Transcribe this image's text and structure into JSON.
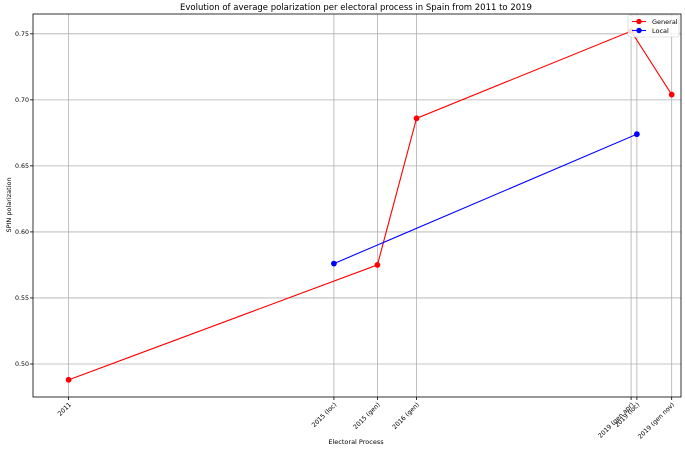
{
  "chart_data": {
    "type": "line",
    "title": "Evolution of average polarization per electoral process in Spain from 2011 to 2019",
    "xlabel": "Electoral Process",
    "ylabel": "SPIN polarization",
    "ylim": [
      0.475,
      0.765
    ],
    "yticks": [
      0.5,
      0.55,
      0.6,
      0.65,
      0.7,
      0.75
    ],
    "ytick_labels": [
      "0.50",
      "0.55",
      "0.60",
      "0.65",
      "0.70",
      "0.75"
    ],
    "xtick_labels": [
      "2011",
      "2015 (loc)",
      "2015 (gen)",
      "2016 (gen)",
      "2019 (gen apr)",
      "2019 (loc)",
      "2019 (gen nov)"
    ],
    "x_positions": [
      "2011-11-20",
      "2015-05-24",
      "2015-12-20",
      "2016-06-26",
      "2019-04-28",
      "2019-05-26",
      "2019-11-10"
    ],
    "grid": true,
    "legend_position": "top-right",
    "series": [
      {
        "name": "General",
        "color": "#ff0000",
        "x": [
          "2011-11-20",
          "2015-12-20",
          "2016-06-26",
          "2019-04-28",
          "2019-11-10"
        ],
        "values": [
          0.488,
          0.575,
          0.686,
          0.752,
          0.704
        ]
      },
      {
        "name": "Local",
        "color": "#0000ff",
        "x": [
          "2015-05-24",
          "2019-05-26"
        ],
        "values": [
          0.576,
          0.674
        ]
      }
    ]
  }
}
